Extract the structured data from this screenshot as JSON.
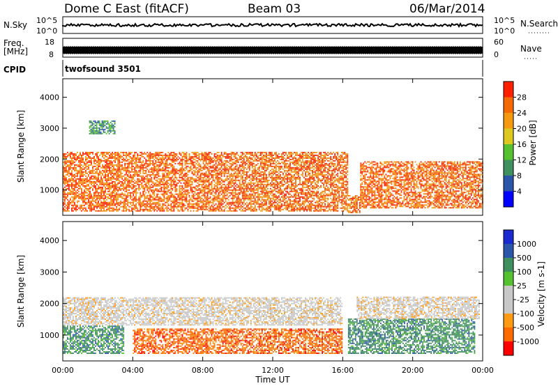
{
  "header": {
    "station": "Dome C East (fitACF)",
    "beam": "Beam 03",
    "date": "06/Mar/2014"
  },
  "noise_panel": {
    "left_label": "N.Sky",
    "left_ticks": [
      "10^5",
      "10^0"
    ],
    "right_ticks": [
      "10^5",
      "10^0"
    ],
    "right_label": "N.Search"
  },
  "freq_panel": {
    "left_label_line1": "Freq.",
    "left_label_line2": "[MHz]",
    "left_ticks": [
      "18",
      "8"
    ],
    "right_ticks": [
      "60",
      "0"
    ],
    "right_label": "Nave"
  },
  "cpid_panel": {
    "left_label": "CPID",
    "program": "twofsound 3501"
  },
  "colors": {
    "power": [
      "#0000ff",
      "#2a55a8",
      "#3f8f5f",
      "#55c030",
      "#ddc820",
      "#f59a10",
      "#f56a05",
      "#ff2000"
    ],
    "velocity": [
      "#ff0000",
      "#ff6a00",
      "#ff9a15",
      "#c8c8c8",
      "#c8c8c8",
      "#55c030",
      "#3f8f5f",
      "#2a55a8",
      "#1a2ad0"
    ]
  },
  "chart_data": [
    {
      "type": "heatmap",
      "title": "",
      "quantity": "Power",
      "xlabel": "",
      "ylabel": "Slant Range [km]",
      "xlim": [
        "00:00",
        "24:00"
      ],
      "ylim": [
        180,
        4600
      ],
      "x_ticks": [
        "00:00",
        "04:00",
        "08:00",
        "12:00",
        "16:00",
        "20:00",
        "00:00"
      ],
      "y_ticks": [
        "1000",
        "2000",
        "3000",
        "4000"
      ],
      "colorbar": {
        "label": "Power [dB]",
        "ticks": [
          "28",
          "24",
          "20",
          "16",
          "12",
          "8",
          "4"
        ],
        "range": [
          0,
          32
        ]
      },
      "regions": [
        {
          "t_start": 0.0,
          "t_end": 16.3,
          "range_low_km": 300,
          "range_high_km": 2200,
          "typical_value": 28
        },
        {
          "t_start": 17.0,
          "t_end": 24.0,
          "range_low_km": 400,
          "range_high_km": 1900,
          "typical_value": 26
        },
        {
          "t_start": 1.5,
          "t_end": 3.0,
          "range_low_km": 2800,
          "range_high_km": 3250,
          "typical_value": 10
        },
        {
          "t_start": 16.3,
          "t_end": 17.0,
          "range_low_km": 250,
          "range_high_km": 800,
          "typical_value": 28
        }
      ]
    },
    {
      "type": "heatmap",
      "title": "",
      "quantity": "Velocity",
      "xlabel": "Time UT",
      "ylabel": "Slant Range [km]",
      "xlim": [
        "00:00",
        "24:00"
      ],
      "ylim": [
        180,
        4600
      ],
      "x_ticks": [
        "00:00",
        "04:00",
        "08:00",
        "12:00",
        "16:00",
        "20:00",
        "00:00"
      ],
      "y_ticks": [
        "1000",
        "2000",
        "3000",
        "4000"
      ],
      "colorbar": {
        "label": "Velocity [m s-1]",
        "ticks": [
          "1000",
          "500",
          "100",
          "25",
          "-25",
          "-100",
          "-500",
          "-1000"
        ]
      },
      "regions": [
        {
          "t_start": 0.0,
          "t_end": 16.0,
          "range_low_km": 1300,
          "range_high_km": 2200,
          "typical_value": 0
        },
        {
          "t_start": 4.0,
          "t_end": 16.0,
          "range_low_km": 400,
          "range_high_km": 1200,
          "typical_value": -150
        },
        {
          "t_start": 0.0,
          "t_end": 3.5,
          "range_low_km": 400,
          "range_high_km": 1300,
          "typical_value": 150
        },
        {
          "t_start": 16.3,
          "t_end": 23.5,
          "range_low_km": 400,
          "range_high_km": 1500,
          "typical_value": 200
        },
        {
          "t_start": 16.8,
          "t_end": 23.8,
          "range_low_km": 1500,
          "range_high_km": 2200,
          "typical_value": 0
        }
      ]
    }
  ]
}
